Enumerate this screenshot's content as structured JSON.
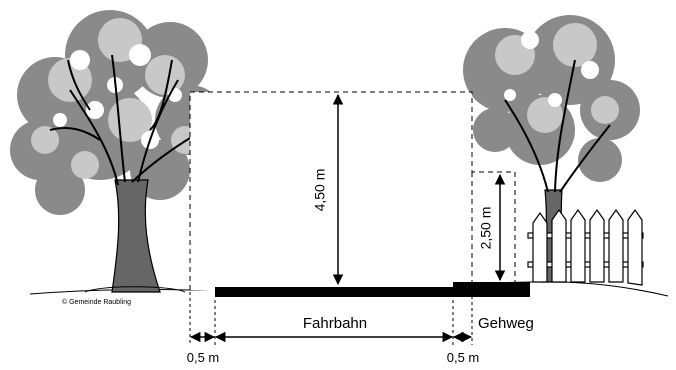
{
  "labels": {
    "clearance_road": "4,50 m",
    "clearance_sidewalk": "2,50 m",
    "road": "Fahrbahn",
    "sidewalk": "Gehweg",
    "margin_left": "0,5 m",
    "margin_right": "0,5 m",
    "credit": "© Gemeinde Raubling"
  },
  "icons": {
    "tree_left": "deciduous-tree-icon",
    "tree_right": "deciduous-tree-icon",
    "fence": "picket-fence-icon"
  }
}
